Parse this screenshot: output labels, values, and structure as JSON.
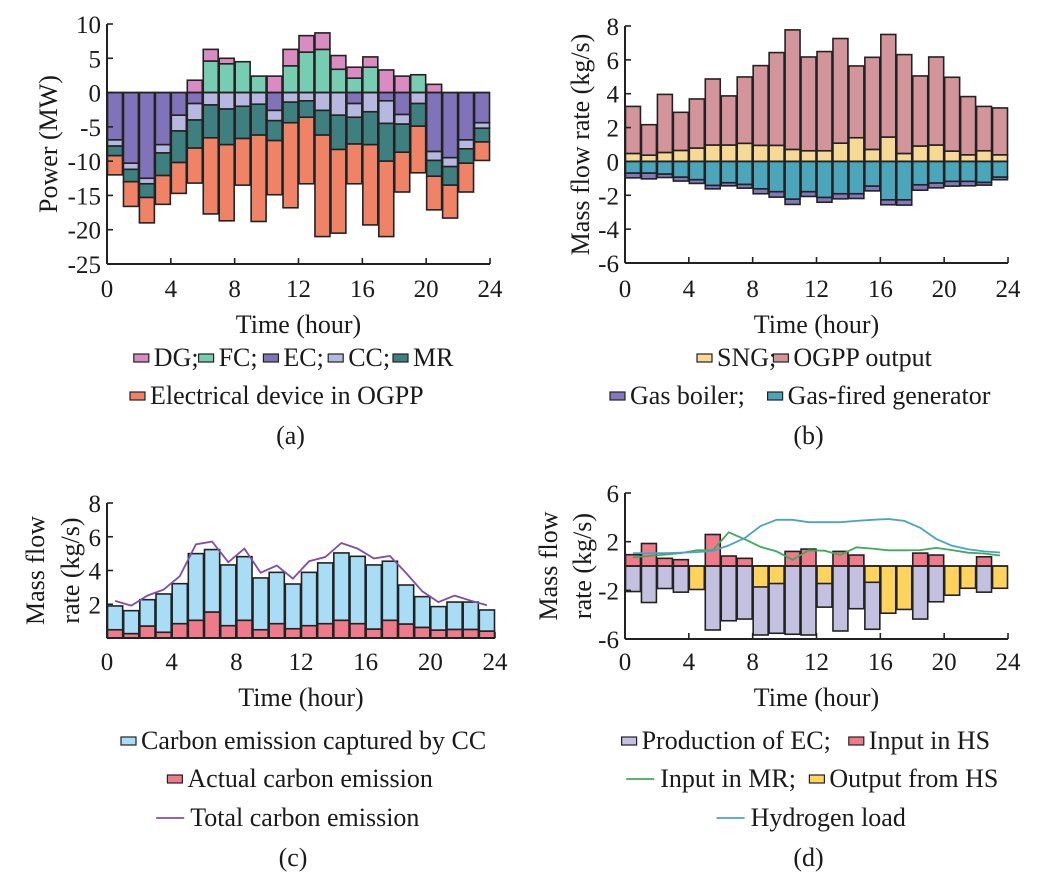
{
  "figure": {
    "panels": [
      "(a)",
      "(b)",
      "(c)",
      "(d)"
    ]
  },
  "chart_data": [
    {
      "id": "a",
      "type": "bar",
      "stacked": true,
      "panel_label": "(a)",
      "title": "",
      "xlabel": "Time (hour)",
      "ylabel": "Power (MW)",
      "xlim": [
        0,
        24
      ],
      "ylim": [
        -25,
        10
      ],
      "xticks": [
        "0",
        "4",
        "8",
        "12",
        "16",
        "20",
        "24"
      ],
      "yticks": [
        "10",
        "5",
        "0",
        "-5",
        "-10",
        "-15",
        "-20",
        "-25"
      ],
      "ytick_values": [
        10,
        5,
        0,
        -5,
        -10,
        -15,
        -20,
        -25
      ],
      "grid": false,
      "legend_rows": [
        [
          {
            "name": "DG",
            "sep": ";"
          },
          {
            "name": "FC",
            "sep": ";"
          },
          {
            "name": "EC",
            "sep": ";"
          },
          {
            "name": "CC",
            "sep": ";"
          },
          {
            "name": "MR",
            "sep": ""
          }
        ],
        [
          {
            "name": "Electrical device in OGPP",
            "sep": ""
          }
        ]
      ],
      "legend_position": "bottom",
      "x": [
        1,
        2,
        3,
        4,
        5,
        6,
        7,
        8,
        9,
        10,
        11,
        12,
        13,
        14,
        15,
        16,
        17,
        18,
        19,
        20,
        21,
        22,
        23,
        24
      ],
      "series": [
        {
          "name": "FC",
          "color": "#77CDB1",
          "sign": "positive",
          "values": [
            0,
            0,
            0,
            0,
            0,
            0,
            4.6,
            4.2,
            4.5,
            2.4,
            0,
            3.9,
            5.9,
            6.3,
            3.4,
            2.1,
            3.7,
            0,
            0,
            2.6,
            0,
            0,
            0,
            0
          ]
        },
        {
          "name": "DG",
          "color": "#D98BC2",
          "sign": "positive",
          "values": [
            0,
            0,
            0,
            0,
            0,
            1.8,
            1.7,
            0.8,
            0,
            0,
            2.4,
            2.4,
            2.4,
            2.4,
            2.0,
            1.6,
            1.5,
            3.3,
            2.4,
            0,
            1.2,
            0,
            0,
            0
          ]
        },
        {
          "name": "EC",
          "color": "#8073B9",
          "sign": "negative",
          "values": [
            -6.9,
            -10.3,
            -12.5,
            -7.6,
            -3.3,
            -1.6,
            0,
            0,
            0,
            0,
            -2.6,
            0,
            0,
            0,
            0,
            -1.6,
            0,
            -1.2,
            -3.2,
            0,
            -8.6,
            -9.5,
            -6.9,
            -4.4
          ]
        },
        {
          "name": "CC",
          "color": "#B6B8DF",
          "sign": "negative",
          "values": [
            -0.9,
            -0.9,
            -0.8,
            -1.2,
            -2.3,
            -2.4,
            -1.8,
            -2.4,
            -2.0,
            -1.7,
            -1.5,
            -1.4,
            -1.2,
            -2.6,
            -3.3,
            -2.0,
            -2.8,
            -3.3,
            -1.4,
            -1.6,
            -1.3,
            -1.3,
            -1.3,
            -0.8
          ]
        },
        {
          "name": "MR",
          "color": "#3E8080",
          "sign": "negative",
          "values": [
            -1.4,
            -1.8,
            -2.0,
            -3.3,
            -4.6,
            -4.1,
            -4.8,
            -5.2,
            -4.7,
            -4.5,
            -2.9,
            -3.0,
            -2.4,
            -3.6,
            -5.0,
            -3.9,
            -4.8,
            -5.5,
            -4.1,
            -3.3,
            -2.3,
            -2.7,
            -2.1,
            -2.0
          ]
        },
        {
          "name": "Electrical device in OGPP",
          "color": "#F08366",
          "sign": "negative",
          "values": [
            -2.8,
            -3.6,
            -3.7,
            -4.2,
            -4.5,
            -5.1,
            -11.1,
            -11.1,
            -6.8,
            -12.6,
            -7.9,
            -12.4,
            -9.7,
            -14.8,
            -12.2,
            -5.8,
            -11.7,
            -11.0,
            -5.8,
            -6.8,
            -4.9,
            -4.8,
            -4.2,
            -2.7
          ]
        }
      ]
    },
    {
      "id": "b",
      "type": "bar",
      "stacked": true,
      "panel_label": "(b)",
      "title": "",
      "xlabel": "Time (hour)",
      "ylabel": "Mass flow rate (kg/s)",
      "xlim": [
        0,
        24
      ],
      "ylim": [
        -6,
        8
      ],
      "xticks": [
        "0",
        "4",
        "8",
        "12",
        "16",
        "20",
        "24"
      ],
      "yticks": [
        "8",
        "6",
        "4",
        "2",
        "0",
        "-2",
        "-4",
        "-6"
      ],
      "ytick_values": [
        8,
        6,
        4,
        2,
        0,
        -2,
        -4,
        -6
      ],
      "grid": false,
      "legend_rows": [
        [
          {
            "name": "SNG",
            "sep": ";"
          },
          {
            "name": "OGPP output",
            "sep": ""
          }
        ],
        [
          {
            "name": "Gas boiler",
            "sep": ";"
          },
          {
            "name": "Gas-fired generator",
            "sep": ""
          }
        ]
      ],
      "legend_position": "bottom",
      "x": [
        1,
        2,
        3,
        4,
        5,
        6,
        7,
        8,
        9,
        10,
        11,
        12,
        13,
        14,
        15,
        16,
        17,
        18,
        19,
        20,
        21,
        22,
        23,
        24
      ],
      "series": [
        {
          "name": "SNG",
          "color": "#F5D995",
          "sign": "positive",
          "values": [
            0.47,
            0.37,
            0.53,
            0.65,
            0.79,
            0.97,
            0.97,
            1.07,
            0.95,
            0.95,
            0.71,
            0.63,
            0.63,
            1.08,
            1.4,
            0.71,
            1.44,
            0.47,
            0.91,
            0.97,
            0.61,
            0.39,
            0.63,
            0.39
          ]
        },
        {
          "name": "OGPP output",
          "color": "#D4959A",
          "sign": "positive",
          "values": [
            2.78,
            1.8,
            3.43,
            2.25,
            2.9,
            3.9,
            2.9,
            3.92,
            4.71,
            5.48,
            7.06,
            5.54,
            5.86,
            6.18,
            4.24,
            5.44,
            6.06,
            5.84,
            4.14,
            5.2,
            4.36,
            3.44,
            2.62,
            2.77
          ]
        },
        {
          "name": "Gas-fired generator",
          "color": "#4BA6BC",
          "sign": "negative",
          "values": [
            -0.69,
            -0.69,
            -0.75,
            -0.93,
            -1.08,
            -1.42,
            -1.26,
            -1.36,
            -1.62,
            -1.79,
            -2.23,
            -1.79,
            -2.13,
            -1.91,
            -1.91,
            -1.46,
            -2.27,
            -2.27,
            -1.38,
            -1.28,
            -1.18,
            -1.18,
            -1.24,
            -0.93
          ]
        },
        {
          "name": "Gas boiler",
          "color": "#8477BD",
          "sign": "negative",
          "values": [
            -0.28,
            -0.34,
            -0.2,
            -0.23,
            -0.22,
            -0.2,
            -0.18,
            -0.22,
            -0.29,
            -0.32,
            -0.31,
            -0.28,
            -0.28,
            -0.3,
            -0.28,
            -0.28,
            -0.29,
            -0.31,
            -0.32,
            -0.28,
            -0.28,
            -0.26,
            -0.16,
            -0.15
          ]
        }
      ]
    },
    {
      "id": "c",
      "type": "bar",
      "stacked": true,
      "panel_label": "(c)",
      "title": "",
      "xlabel": "Time (hour)",
      "ylabel_lines": [
        "Mass flow",
        "rate (kg/s)"
      ],
      "xlim": [
        0,
        24
      ],
      "ylim": [
        0,
        8
      ],
      "xticks": [
        "0",
        "4",
        "8",
        "12",
        "16",
        "20",
        "24"
      ],
      "yticks": [
        "8",
        "6",
        "4",
        "2"
      ],
      "ytick_values": [
        8,
        6,
        4,
        2
      ],
      "grid": false,
      "legend_rows": [
        [
          {
            "name": "Carbon emission captured by CC",
            "sep": "",
            "kind": "box"
          }
        ],
        [
          {
            "name": "Actual carbon emission",
            "sep": "",
            "kind": "box"
          }
        ],
        [
          {
            "name": "Total carbon emission",
            "sep": "",
            "kind": "line"
          }
        ]
      ],
      "legend_position": "bottom",
      "x": [
        1,
        2,
        3,
        4,
        5,
        6,
        7,
        8,
        9,
        10,
        11,
        12,
        13,
        14,
        15,
        16,
        17,
        18,
        19,
        20,
        21,
        22,
        23,
        24
      ],
      "series": [
        {
          "name": "Actual carbon emission",
          "color": "#EE7A8A",
          "kind": "bar",
          "values": [
            0.49,
            0.26,
            0.71,
            0.34,
            0.85,
            1.05,
            1.54,
            0.73,
            1.05,
            0.49,
            0.85,
            0.55,
            0.73,
            0.85,
            1.05,
            0.85,
            0.53,
            1.05,
            0.83,
            0.63,
            0.47,
            0.51,
            0.51,
            0.41
          ]
        },
        {
          "name": "Carbon emission captured by CC",
          "color": "#A8DDF5",
          "kind": "bar",
          "values": [
            1.41,
            1.36,
            1.56,
            2.27,
            2.37,
            3.95,
            3.7,
            3.6,
            3.77,
            3.07,
            3.04,
            2.65,
            3.16,
            3.6,
            3.99,
            3.99,
            3.8,
            3.5,
            2.31,
            1.82,
            1.39,
            1.62,
            1.62,
            1.25
          ]
        },
        {
          "name": "Total carbon emission",
          "color": "#7E4FA5",
          "kind": "line",
          "values": [
            2.2,
            1.92,
            2.51,
            2.87,
            3.66,
            5.55,
            5.71,
            4.49,
            5.3,
            3.87,
            4.29,
            3.52,
            4.55,
            4.8,
            5.63,
            5.3,
            4.72,
            4.86,
            3.85,
            2.77,
            2.13,
            2.51,
            2.21,
            1.94
          ]
        }
      ]
    },
    {
      "id": "d",
      "type": "bar",
      "stacked": false,
      "panel_label": "(d)",
      "title": "",
      "xlabel": "Time (hour)",
      "ylabel_lines": [
        "Mass flow",
        "rate (kg/s)"
      ],
      "xlim": [
        0,
        24
      ],
      "ylim": [
        -6,
        6
      ],
      "xticks": [
        "0",
        "4",
        "8",
        "12",
        "16",
        "20",
        "24"
      ],
      "yticks": [
        "6",
        "2",
        "-2",
        "-6"
      ],
      "ytick_values": [
        6,
        2,
        -2,
        -6
      ],
      "grid": false,
      "legend_rows": [
        [
          {
            "name": "Production of EC",
            "sep": ";",
            "kind": "box"
          },
          {
            "name": "Input in HS",
            "sep": "",
            "kind": "box"
          }
        ],
        [
          {
            "name": "Input in MR",
            "sep": ";",
            "kind": "line"
          },
          {
            "name": "Output from HS",
            "sep": "",
            "kind": "box"
          }
        ],
        [
          {
            "name": "Hydrogen load",
            "sep": "",
            "kind": "line"
          }
        ]
      ],
      "legend_position": "bottom",
      "x": [
        1,
        2,
        3,
        4,
        5,
        6,
        7,
        8,
        9,
        10,
        11,
        12,
        13,
        14,
        15,
        16,
        17,
        18,
        19,
        20,
        21,
        22,
        23,
        24
      ],
      "series": [
        {
          "name": "Production of EC",
          "color": "#C4C0E0",
          "kind": "bar",
          "values": [
            -2.1,
            -3.0,
            -1.85,
            -2.15,
            0,
            -5.26,
            -4.5,
            -4.36,
            -5.67,
            -5.53,
            -5.61,
            -5.67,
            -3.38,
            -5.34,
            -3.51,
            -5.2,
            0,
            0,
            -4.36,
            -2.94,
            0,
            0,
            -2.15,
            0
          ]
        },
        {
          "name": "Input in HS",
          "color": "#EE7A8A",
          "kind": "bar",
          "values": [
            0.93,
            1.85,
            0.63,
            0.52,
            0,
            2.59,
            0.82,
            0.63,
            0,
            0,
            1.2,
            1.39,
            0,
            1.2,
            0.9,
            0,
            0,
            0,
            1.06,
            0.9,
            0,
            0,
            0.76,
            0
          ]
        },
        {
          "name": "Output from HS",
          "color": "#FFD35C",
          "kind": "bar",
          "values": [
            0,
            0,
            0,
            0,
            -1.93,
            0,
            0,
            0,
            -1.72,
            -1.44,
            0,
            0,
            -1.44,
            0,
            0,
            -1.34,
            -3.88,
            -3.57,
            0,
            0,
            -2.4,
            -1.83,
            0,
            -1.83
          ]
        },
        {
          "name": "Input in MR",
          "color": "#3DAA5C",
          "kind": "line",
          "values": [
            0.71,
            0.83,
            0.94,
            1.06,
            1.29,
            1.29,
            2.77,
            2.2,
            1.57,
            1.2,
            0.51,
            1.29,
            1.26,
            0.91,
            1.54,
            1.43,
            1.29,
            1.29,
            1.31,
            1.49,
            1.31,
            1.09,
            1.03,
            0.86
          ]
        },
        {
          "name": "Hydrogen load",
          "color": "#4AA3C7",
          "kind": "line",
          "values": [
            1.06,
            1.06,
            1.06,
            1.09,
            1.14,
            1.23,
            1.69,
            2.29,
            3.29,
            3.8,
            3.8,
            3.6,
            3.6,
            3.6,
            3.71,
            3.8,
            3.86,
            3.71,
            3.14,
            2.23,
            1.66,
            1.37,
            1.2,
            1.11
          ]
        }
      ]
    }
  ]
}
